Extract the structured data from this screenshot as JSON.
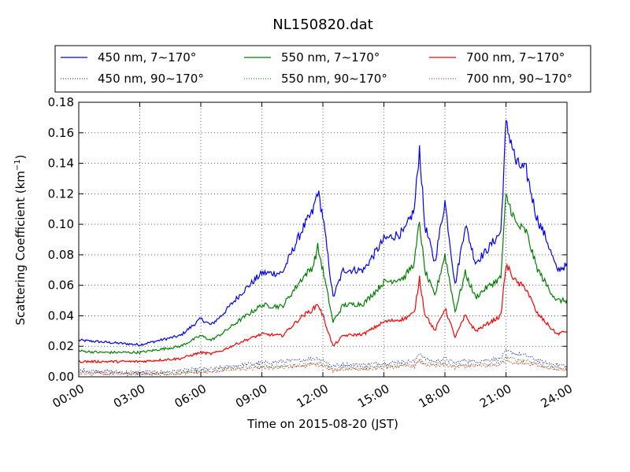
{
  "chart_data": {
    "type": "line",
    "title": "NL150820.dat",
    "xlabel": "Time on 2015-08-20 (JST)",
    "ylabel": "Scattering Coefficient (km",
    "ylabel_sup": "−1",
    "ylabel_close": ")",
    "xlim": [
      "00:00",
      "24:00"
    ],
    "ylim": [
      0,
      0.18
    ],
    "grid": true,
    "legend_placement": "top, outside plot",
    "x_ticks": [
      "00:00",
      "03:00",
      "06:00",
      "09:00",
      "12:00",
      "15:00",
      "18:00",
      "21:00",
      "24:00"
    ],
    "y_ticks": [
      "0.00",
      "0.02",
      "0.04",
      "0.06",
      "0.08",
      "0.10",
      "0.12",
      "0.14",
      "0.16",
      "0.18"
    ],
    "x_hours": [
      0,
      1,
      2,
      3,
      4,
      5,
      6,
      6.5,
      7,
      8,
      9,
      10,
      11,
      11.5,
      11.75,
      12,
      12.5,
      13,
      14,
      15,
      16,
      16.5,
      16.75,
      17,
      17.5,
      18,
      18.5,
      19,
      19.5,
      20,
      20.75,
      21,
      21.25,
      21.5,
      22,
      22.5,
      23,
      23.5,
      24
    ],
    "series": [
      {
        "name": "450 nm, 7∼170°",
        "color": "#0000ff",
        "style": "solid",
        "values": [
          0.024,
          0.023,
          0.022,
          0.021,
          0.024,
          0.027,
          0.038,
          0.034,
          0.04,
          0.055,
          0.068,
          0.068,
          0.097,
          0.108,
          0.122,
          0.105,
          0.052,
          0.07,
          0.07,
          0.09,
          0.095,
          0.11,
          0.15,
          0.1,
          0.075,
          0.115,
          0.06,
          0.1,
          0.075,
          0.082,
          0.095,
          0.165,
          0.155,
          0.14,
          0.135,
          0.105,
          0.09,
          0.07,
          0.073
        ]
      },
      {
        "name": "450 nm, 90∼170°",
        "color": "#0000ff",
        "style": "dotted",
        "values": [
          0.004,
          0.004,
          0.003,
          0.003,
          0.003,
          0.004,
          0.005,
          0.005,
          0.006,
          0.008,
          0.009,
          0.01,
          0.011,
          0.012,
          0.012,
          0.011,
          0.007,
          0.008,
          0.008,
          0.009,
          0.01,
          0.01,
          0.016,
          0.012,
          0.01,
          0.012,
          0.009,
          0.011,
          0.01,
          0.011,
          0.012,
          0.017,
          0.016,
          0.015,
          0.014,
          0.011,
          0.009,
          0.008,
          0.007
        ]
      },
      {
        "name": "550 nm, 7∼170°",
        "color": "#008000",
        "style": "solid",
        "values": [
          0.017,
          0.016,
          0.016,
          0.016,
          0.018,
          0.02,
          0.027,
          0.024,
          0.028,
          0.038,
          0.047,
          0.046,
          0.065,
          0.072,
          0.085,
          0.07,
          0.036,
          0.047,
          0.048,
          0.062,
          0.065,
          0.075,
          0.102,
          0.07,
          0.053,
          0.08,
          0.043,
          0.068,
          0.052,
          0.058,
          0.065,
          0.118,
          0.11,
          0.1,
          0.095,
          0.072,
          0.06,
          0.05,
          0.05
        ]
      },
      {
        "name": "550 nm, 90∼170°",
        "color": "#008000",
        "style": "dotted",
        "values": [
          0.003,
          0.003,
          0.002,
          0.002,
          0.002,
          0.003,
          0.004,
          0.004,
          0.005,
          0.006,
          0.007,
          0.007,
          0.008,
          0.009,
          0.009,
          0.008,
          0.005,
          0.006,
          0.006,
          0.007,
          0.008,
          0.008,
          0.012,
          0.009,
          0.008,
          0.009,
          0.007,
          0.008,
          0.008,
          0.008,
          0.009,
          0.013,
          0.012,
          0.011,
          0.011,
          0.009,
          0.007,
          0.006,
          0.005
        ]
      },
      {
        "name": "700 nm, 7∼170°",
        "color": "#ff0000",
        "style": "solid",
        "values": [
          0.01,
          0.01,
          0.01,
          0.01,
          0.011,
          0.012,
          0.016,
          0.015,
          0.017,
          0.023,
          0.028,
          0.027,
          0.04,
          0.044,
          0.048,
          0.04,
          0.02,
          0.027,
          0.028,
          0.036,
          0.038,
          0.042,
          0.065,
          0.042,
          0.03,
          0.045,
          0.026,
          0.04,
          0.03,
          0.034,
          0.04,
          0.073,
          0.068,
          0.062,
          0.058,
          0.042,
          0.035,
          0.028,
          0.03
        ]
      },
      {
        "name": "700 nm, 90∼170°",
        "color": "#ff0000",
        "style": "dotted",
        "values": [
          0.002,
          0.002,
          0.002,
          0.002,
          0.002,
          0.002,
          0.003,
          0.003,
          0.004,
          0.005,
          0.006,
          0.006,
          0.007,
          0.008,
          0.008,
          0.007,
          0.004,
          0.005,
          0.005,
          0.006,
          0.007,
          0.007,
          0.01,
          0.008,
          0.007,
          0.008,
          0.006,
          0.007,
          0.007,
          0.007,
          0.008,
          0.011,
          0.01,
          0.009,
          0.009,
          0.008,
          0.006,
          0.005,
          0.005
        ]
      }
    ]
  }
}
